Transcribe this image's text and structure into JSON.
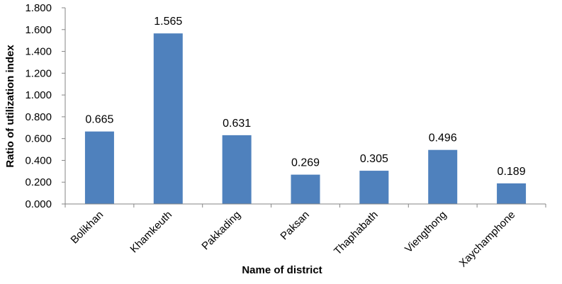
{
  "chart_data": {
    "type": "bar",
    "categories": [
      "Bolikhan",
      "Khamkeuth",
      "Pakkading",
      "Paksan",
      "Thaphabath",
      "Viengthong",
      "Xaychamphone"
    ],
    "values": [
      0.665,
      1.565,
      0.631,
      0.269,
      0.305,
      0.496,
      0.189
    ],
    "data_labels": [
      "0.665",
      "1.565",
      "0.631",
      "0.269",
      "0.305",
      "0.496",
      "0.189"
    ],
    "xlabel": "Name of district",
    "ylabel": "Ratio of utilization index",
    "ylim": [
      0,
      1.8
    ],
    "yticks": [
      "0.000",
      "0.200",
      "0.400",
      "0.600",
      "0.800",
      "1.000",
      "1.200",
      "1.400",
      "1.600",
      "1.800"
    ],
    "bar_color": "#4f81bd",
    "grid": false,
    "legend": "none"
  }
}
